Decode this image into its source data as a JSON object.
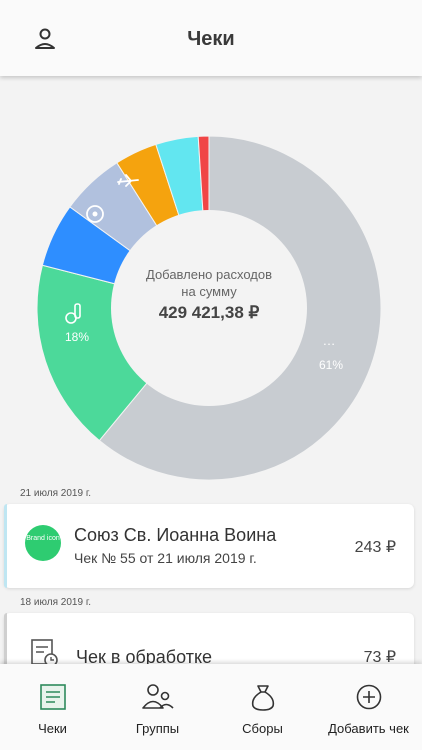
{
  "header": {
    "title": "Чеки"
  },
  "chart_data": {
    "type": "pie",
    "title": "",
    "center_label": "Добавлено расходов на сумму",
    "center_label_line1": "Добавлено расходов",
    "center_label_line2": "на сумму",
    "total": "429 421,38 ₽",
    "slices": [
      {
        "name": "…",
        "percent": 61,
        "color": "#c8ccd1",
        "icon": "ellipsis-icon",
        "label": "61%"
      },
      {
        "name": "food",
        "percent": 18,
        "color": "#4cd99a",
        "icon": "apple-bottle-icon",
        "label": "18%"
      },
      {
        "name": "sport",
        "percent": 6,
        "color": "#2e8eff",
        "icon": "soccer-ball-icon",
        "label": ""
      },
      {
        "name": "travel",
        "percent": 6,
        "color": "#b1c1de",
        "icon": "airplane-icon",
        "label": ""
      },
      {
        "name": "orange",
        "percent": 4,
        "color": "#f5a30e",
        "icon": "",
        "label": ""
      },
      {
        "name": "cyan",
        "percent": 4,
        "color": "#62e6f0",
        "icon": "",
        "label": ""
      },
      {
        "name": "red",
        "percent": 1,
        "color": "#f04646",
        "icon": "",
        "label": ""
      }
    ]
  },
  "receipts": [
    {
      "date": "21 июля 2019 г.",
      "brand_icon": "Brand icon",
      "name": "Союз Св. Иоанна Воина",
      "subtitle": "Чек № 55 от 21 июля 2019 г.",
      "amount": "243 ₽",
      "accent": "#bfe6f2"
    },
    {
      "date": "18 июля 2019 г.",
      "name": "Чек в обработке",
      "amount": "73 ₽",
      "accent": "#cfcfcf"
    }
  ],
  "tabs": [
    {
      "label": "Чеки",
      "icon": "receipt-icon",
      "active": true
    },
    {
      "label": "Группы",
      "icon": "group-icon",
      "active": false
    },
    {
      "label": "Сборы",
      "icon": "money-bag-icon",
      "active": false
    },
    {
      "label": "Добавить чек",
      "icon": "plus-circle-icon",
      "active": false
    }
  ],
  "colors": {
    "accent_green": "#2d8a5c",
    "brand_green": "#2ecc71"
  }
}
